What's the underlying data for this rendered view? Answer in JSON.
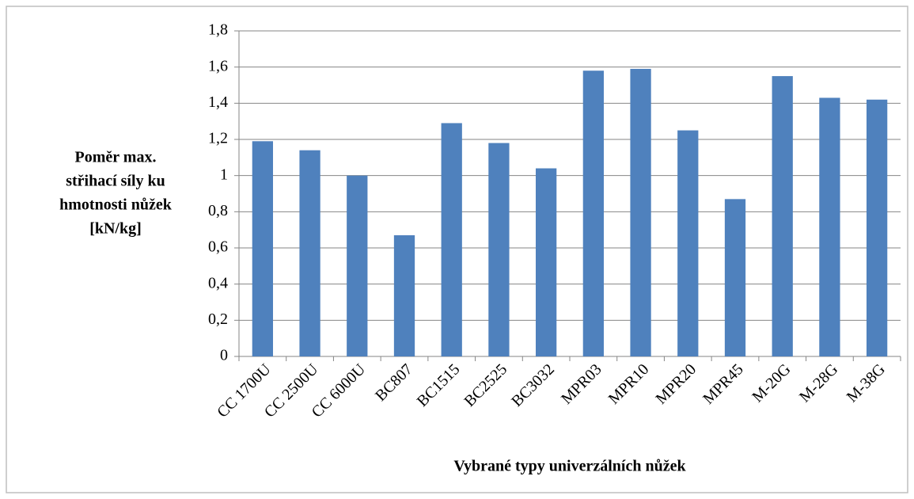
{
  "chart_data": {
    "type": "bar",
    "x_label": "Vybrané typy univerzálních nůžek",
    "y_label": [
      "Poměr max.",
      "střihací síly ku",
      "hmotnosti nůžek",
      "[kN/kg]"
    ],
    "categories": [
      "CC 1700U",
      "CC 2500U",
      "CC 6000U",
      "BC807",
      "BC1515",
      "BC2525",
      "BC3032",
      "MPR03",
      "MPR10",
      "MPR20",
      "MPR45",
      "M-20G",
      "M-28G",
      "M-38G"
    ],
    "values": [
      1.19,
      1.14,
      1.0,
      0.67,
      1.29,
      1.18,
      1.04,
      1.58,
      1.59,
      1.25,
      0.87,
      1.55,
      1.43,
      1.42
    ],
    "color": "#4f81bd",
    "ylim": [
      0,
      1.8
    ],
    "yticks": [
      0,
      {
        "value": 0.2,
        "label": "0,2"
      },
      {
        "value": 0.4,
        "label": "0,4"
      },
      {
        "value": 0.6,
        "label": "0,6"
      },
      {
        "value": 0.8,
        "label": "0,8"
      },
      1,
      {
        "value": 1.2,
        "label": "1,2"
      },
      {
        "value": 1.4,
        "label": "1,4"
      },
      {
        "value": 1.6,
        "label": "1,6"
      },
      {
        "value": 1.8,
        "label": "1,8"
      }
    ],
    "grid": true
  }
}
